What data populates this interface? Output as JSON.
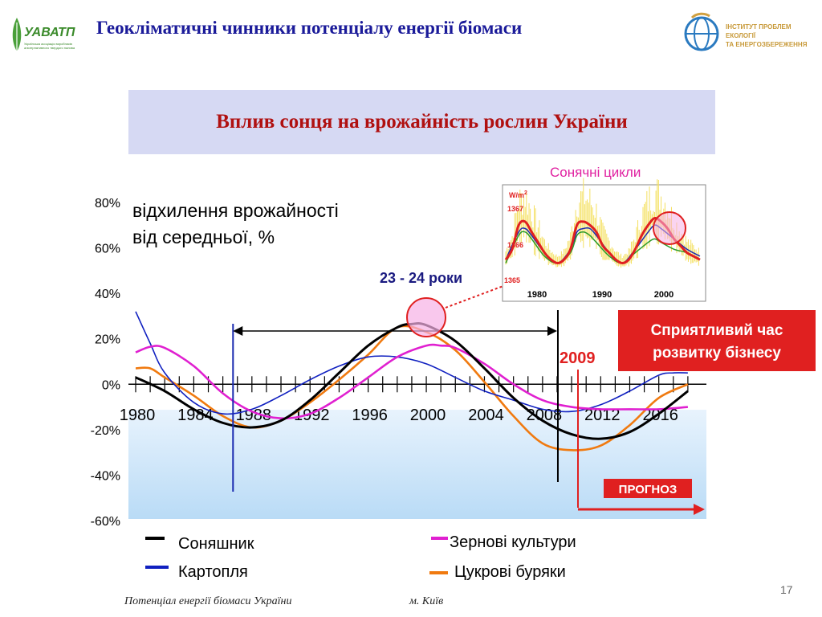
{
  "header": {
    "title": "Геокліматичні чинники потенціалу енергії біомаси",
    "logo_left": {
      "brand": "УАВАТП",
      "subtitle": "Українська асоціація виробників альтернативного твердого палива"
    },
    "logo_right": {
      "line1": "ІНСТИТУТ ПРОБЛЕМ ЕКОЛОГІЇ",
      "line2": "ТА ЕНЕРГОЗБЕРЕЖЕННЯ"
    }
  },
  "banner": {
    "title": "Вплив сонця на врожайність рослин України"
  },
  "chart_data": [
    {
      "type": "line",
      "ylabel_line1": "відхилення врожайності",
      "ylabel_line2": "від середньої, %",
      "ylim": [
        -60,
        80
      ],
      "xlim": [
        1980,
        2019
      ],
      "yticks": [
        "80%",
        "60%",
        "40%",
        "20%",
        "0%",
        "-20%",
        "-40%",
        "-60%"
      ],
      "ytick_values": [
        80,
        60,
        40,
        20,
        0,
        -20,
        -40,
        -60
      ],
      "xticks": [
        "1980",
        "1984",
        "1988",
        "1992",
        "1996",
        "2000",
        "2004",
        "2008",
        "2012",
        "2016"
      ],
      "xtick_values": [
        1980,
        1984,
        1988,
        1992,
        1996,
        2000,
        2004,
        2008,
        2012,
        2016
      ],
      "series": [
        {
          "name": "Соняшник",
          "color": "#000000",
          "x": [
            1980,
            1982,
            1984,
            1986,
            1988,
            1990,
            1992,
            1994,
            1996,
            1998,
            1999,
            2000,
            2002,
            2004,
            2006,
            2008,
            2010,
            2012,
            2014,
            2016,
            2018
          ],
          "y": [
            3,
            -3,
            -11,
            -17,
            -19,
            -16,
            -7,
            5,
            17,
            25,
            26.5,
            26,
            19,
            7,
            -6,
            -16,
            -22,
            -24,
            -21,
            -13,
            -3
          ]
        },
        {
          "name": "Зернові культури",
          "color": "#e020d0",
          "x": [
            1980,
            1981,
            1982,
            1984,
            1986,
            1988,
            1990,
            1992,
            1994,
            1996,
            1998,
            2000,
            2001,
            2002,
            2004,
            2006,
            2008,
            2010,
            2012,
            2014,
            2016,
            2018
          ],
          "y": [
            14,
            16.5,
            16,
            8,
            -4,
            -12,
            -15,
            -13,
            -6,
            3,
            12,
            17,
            17,
            16,
            9,
            0,
            -7,
            -10,
            -11,
            -11,
            -11,
            -10
          ]
        },
        {
          "name": "Картопля",
          "color": "#1020c0",
          "x": [
            1980,
            1981,
            1982,
            1984,
            1986,
            1988,
            1990,
            1992,
            1994,
            1996,
            1998,
            2000,
            2002,
            2004,
            2006,
            2008,
            2010,
            2012,
            2014,
            2016,
            2017,
            2018
          ],
          "y": [
            32,
            18,
            5,
            -8,
            -13,
            -11,
            -5,
            2,
            8,
            12,
            12,
            9,
            3,
            -3,
            -7,
            -11,
            -12,
            -9,
            -3,
            4,
            5,
            5
          ]
        },
        {
          "name": "Цукрові буряки",
          "color": "#f07a10",
          "x": [
            1980,
            1981,
            1982,
            1984,
            1986,
            1988,
            1990,
            1992,
            1994,
            1996,
            1998,
            2000,
            2002,
            2004,
            2006,
            2008,
            2010,
            2012,
            2014,
            2016,
            2018
          ],
          "y": [
            7,
            7,
            3,
            -5,
            -14,
            -19,
            -16,
            -8,
            2,
            13,
            25,
            23,
            15,
            1,
            -14,
            -26,
            -29,
            -27,
            -18,
            -6,
            0
          ]
        }
      ],
      "annotations": {
        "cycle_label": "23 - 24 роки",
        "year_2009": "2009",
        "forecast": "ПРОГНОЗ",
        "favorable": [
          "Сприятливий час",
          "розвитку бізнесу"
        ]
      }
    },
    {
      "type": "line",
      "title": "Сонячні цикли",
      "yunit": "W/m",
      "yunit_sup": "2",
      "yticks": [
        "1367",
        "1366",
        "1365"
      ],
      "xticks": [
        "1980",
        "1990",
        "2000"
      ],
      "series": [
        {
          "name": "",
          "color": "#e02020",
          "x": [
            1978,
            1979,
            1980,
            1981,
            1982,
            1983,
            1984,
            1985,
            1986,
            1987,
            1988,
            1989,
            1990,
            1991,
            1992,
            1993,
            1994,
            1995,
            1996,
            1997,
            1998,
            1999,
            2000,
            2001,
            2002,
            2003,
            2004,
            2005,
            2006,
            2007,
            2008
          ],
          "y": [
            1365.6,
            1365.9,
            1366.6,
            1366.7,
            1366.4,
            1366.1,
            1365.8,
            1365.6,
            1365.5,
            1365.6,
            1365.9,
            1366.6,
            1366.7,
            1366.6,
            1366.4,
            1366.0,
            1365.8,
            1365.6,
            1365.5,
            1365.6,
            1365.9,
            1366.3,
            1366.6,
            1366.8,
            1366.7,
            1366.5,
            1366.2,
            1366.0,
            1365.8,
            1365.7,
            1365.6
          ]
        },
        {
          "name": "",
          "color": "#1a2ab0",
          "x": [
            1978,
            1980,
            1981,
            1982,
            1984,
            1986,
            1988,
            1989,
            1990,
            1991,
            1992,
            1994,
            1996,
            1998,
            2000,
            2001,
            2002,
            2004,
            2006,
            2008
          ],
          "y": [
            1365.6,
            1366.4,
            1366.5,
            1366.3,
            1365.8,
            1365.5,
            1365.9,
            1366.4,
            1366.5,
            1366.5,
            1366.3,
            1365.8,
            1365.5,
            1365.9,
            1366.4,
            1366.6,
            1366.5,
            1366.2,
            1365.9,
            1365.7
          ]
        },
        {
          "name": "",
          "color": "#2a9a2a",
          "x": [
            1978,
            1980,
            1981,
            1982,
            1984,
            1986,
            1988,
            1989,
            1990,
            1991,
            1992,
            1994,
            1996,
            1998,
            2000,
            2001,
            2002,
            2004,
            2006,
            2008
          ],
          "y": [
            1365.5,
            1366.3,
            1366.4,
            1366.2,
            1365.7,
            1365.5,
            1365.8,
            1366.3,
            1366.4,
            1366.3,
            1366.1,
            1365.7,
            1365.5,
            1365.8,
            1366.1,
            1366.2,
            1366.1,
            1365.9,
            1365.8,
            1365.6
          ]
        }
      ]
    }
  ],
  "page_number": "17",
  "footer": {
    "left": "Потенціал  енергії  біомаси  України",
    "right": "м. Київ"
  }
}
